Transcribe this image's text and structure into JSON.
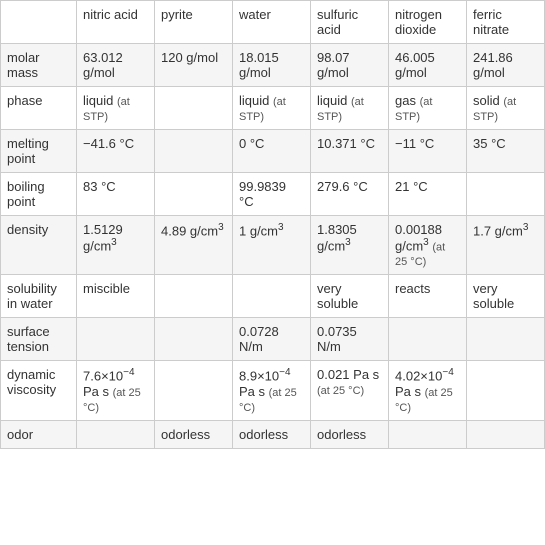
{
  "table": {
    "columns": [
      "",
      "nitric acid",
      "pyrite",
      "water",
      "sulfuric acid",
      "nitrogen dioxide",
      "ferric nitrate"
    ],
    "rows": [
      {
        "label": "molar mass",
        "cells": [
          "63.012 g/mol",
          "120 g/mol",
          "18.015 g/mol",
          "98.07 g/mol",
          "46.005 g/mol",
          "241.86 g/mol"
        ]
      },
      {
        "label": "phase",
        "cells": [
          "liquid (at STP)",
          "",
          "liquid (at STP)",
          "liquid (at STP)",
          "gas (at STP)",
          "solid (at STP)"
        ]
      },
      {
        "label": "melting point",
        "cells": [
          "−41.6 °C",
          "",
          "0 °C",
          "10.371 °C",
          "−11 °C",
          "35 °C"
        ]
      },
      {
        "label": "boiling point",
        "cells": [
          "83 °C",
          "",
          "99.9839 °C",
          "279.6 °C",
          "21 °C",
          ""
        ]
      },
      {
        "label": "density",
        "cells": [
          "1.5129 g/cm³",
          "4.89 g/cm³",
          "1 g/cm³",
          "1.8305 g/cm³",
          "0.00188 g/cm³ (at 25 °C)",
          "1.7 g/cm³"
        ]
      },
      {
        "label": "solubility in water",
        "cells": [
          "miscible",
          "",
          "",
          "very soluble",
          "reacts",
          "very soluble"
        ]
      },
      {
        "label": "surface tension",
        "cells": [
          "",
          "",
          "0.0728 N/m",
          "0.0735 N/m",
          "",
          ""
        ]
      },
      {
        "label": "dynamic viscosity",
        "cells": [
          "7.6×10⁻⁴ Pa s (at 25 °C)",
          "",
          "8.9×10⁻⁴ Pa s (at 25 °C)",
          "0.021 Pa s (at 25 °C)",
          "4.02×10⁻⁴ Pa s (at 25 °C)",
          ""
        ]
      },
      {
        "label": "odor",
        "cells": [
          "",
          "odorless",
          "odorless",
          "odorless",
          "",
          ""
        ]
      }
    ],
    "styling": {
      "border_color": "#cccccc",
      "alt_row_bg": "#f5f5f5",
      "row_bg": "#ffffff",
      "font_size": 13,
      "text_color": "#333333",
      "small_font_size": 11,
      "small_text_color": "#555555"
    }
  }
}
